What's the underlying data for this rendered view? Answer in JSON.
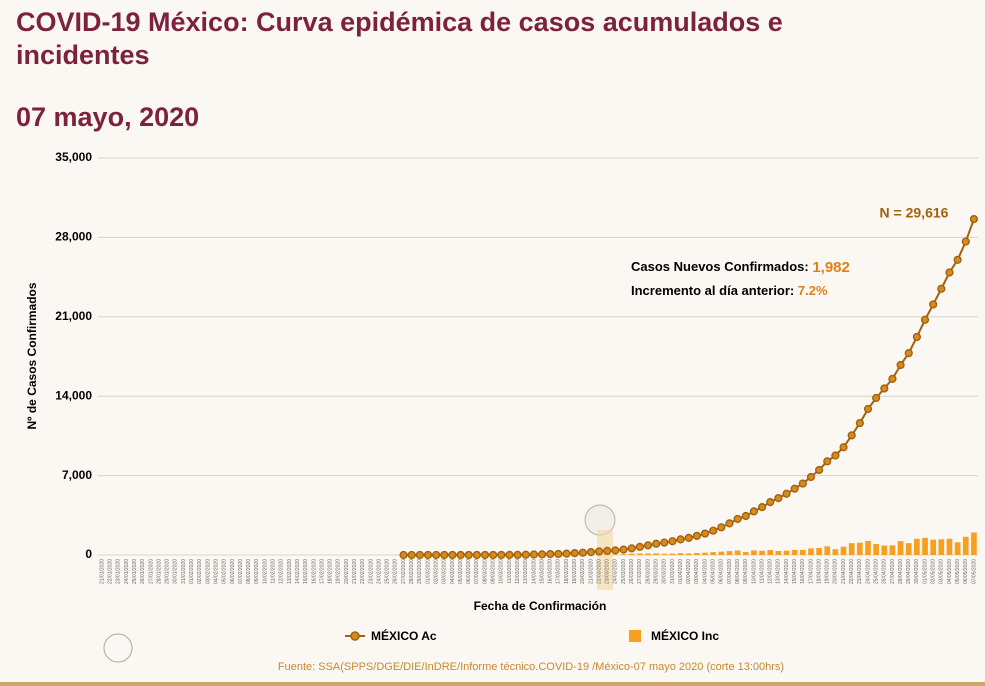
{
  "chart_data": {
    "type": "combo",
    "title": "COVID-19 México: Curva epidémica de casos acumulados e incidentes",
    "subtitle": "07 mayo, 2020",
    "y_label": "Nº de Casos Confirmados",
    "x_label": "Fecha de Confirmación",
    "source": "Fuente: SSA(SPPS/DGE/DIE/InDRE/Informe técnico.COVID-19 /México-07 mayo 2020 (corte 13:00hrs)",
    "annotations": [
      "N = 29,616",
      "Casos Nuevos Confirmados: ",
      "1,982",
      "Incremento al día anterior: ",
      "7.2%"
    ],
    "ylim": [
      0,
      35000
    ],
    "yticks": [
      0,
      {
        "value": 7000,
        "label": "7,000"
      },
      {
        "value": 14000,
        "label": "14,000"
      },
      {
        "value": 21000,
        "label": "21,000"
      },
      {
        "value": 28000,
        "label": "28,000"
      },
      {
        "value": 35000,
        "label": "35,000"
      }
    ],
    "grid": true,
    "categories": [
      "21/01/2020",
      "22/01/2020",
      "23/01/2020",
      "24/01/2020",
      "25/01/2020",
      "26/01/2020",
      "27/01/2020",
      "28/01/2020",
      "29/01/2020",
      "30/01/2020",
      "31/01/2020",
      "01/02/2020",
      "02/02/2020",
      "03/02/2020",
      "04/02/2020",
      "05/02/2020",
      "06/02/2020",
      "07/02/2020",
      "08/02/2020",
      "09/02/2020",
      "10/02/2020",
      "11/02/2020",
      "12/02/2020",
      "13/02/2020",
      "14/02/2020",
      "15/02/2020",
      "16/02/2020",
      "17/02/2020",
      "18/02/2020",
      "19/02/2020",
      "20/02/2020",
      "21/02/2020",
      "22/02/2020",
      "23/02/2020",
      "24/02/2020",
      "25/02/2020",
      "26/02/2020",
      "27/02/2020",
      "28/02/2020",
      "29/02/2020",
      "01/03/2020",
      "02/03/2020",
      "03/03/2020",
      "04/03/2020",
      "05/03/2020",
      "06/03/2020",
      "07/03/2020",
      "08/03/2020",
      "09/03/2020",
      "10/03/2020",
      "11/03/2020",
      "12/03/2020",
      "13/03/2020",
      "14/03/2020",
      "15/03/2020",
      "16/03/2020",
      "17/03/2020",
      "18/03/2020",
      "19/03/2020",
      "20/03/2020",
      "21/03/2020",
      "22/03/2020",
      "23/03/2020",
      "24/03/2020",
      "25/03/2020",
      "26/03/2020",
      "27/03/2020",
      "28/03/2020",
      "29/03/2020",
      "30/03/2020",
      "31/03/2020",
      "01/04/2020",
      "02/04/2020",
      "03/04/2020",
      "04/04/2020",
      "05/04/2020",
      "06/04/2020",
      "07/04/2020",
      "08/04/2020",
      "09/04/2020",
      "10/04/2020",
      "11/04/2020",
      "12/04/2020",
      "13/04/2020",
      "14/04/2020",
      "15/04/2020",
      "16/04/2020",
      "17/04/2020",
      "18/04/2020",
      "19/04/2020",
      "20/04/2020",
      "21/04/2020",
      "22/04/2020",
      "23/04/2020",
      "24/04/2020",
      "25/04/2020",
      "26/04/2020",
      "27/04/2020",
      "28/04/2020",
      "29/04/2020",
      "30/04/2020",
      "01/05/2020",
      "02/05/2020",
      "03/05/2020",
      "04/05/2020",
      "05/05/2020",
      "06/05/2020",
      "07/05/2020"
    ],
    "series": [
      {
        "name": "MÉXICO Ac",
        "type": "line",
        "color": "#a0620e",
        "marker_color": "#d98a1e",
        "values": [
          null,
          null,
          null,
          null,
          null,
          null,
          null,
          null,
          null,
          null,
          null,
          null,
          null,
          null,
          null,
          null,
          null,
          null,
          null,
          null,
          null,
          null,
          null,
          null,
          null,
          null,
          null,
          null,
          null,
          null,
          null,
          null,
          null,
          null,
          null,
          null,
          null,
          0,
          1,
          4,
          5,
          5,
          5,
          5,
          5,
          6,
          7,
          7,
          7,
          7,
          8,
          12,
          26,
          41,
          53,
          82,
          93,
          118,
          164,
          203,
          251,
          316,
          367,
          405,
          475,
          585,
          717,
          848,
          993,
          1094,
          1215,
          1378,
          1510,
          1688,
          1890,
          2143,
          2439,
          2785,
          3181,
          3441,
          3844,
          4219,
          4661,
          5014,
          5399,
          5847,
          6297,
          6875,
          7497,
          8261,
          8772,
          9501,
          10544,
          11633,
          12872,
          13842,
          14677,
          15529,
          16752,
          17799,
          19224,
          20739,
          22088,
          23471,
          24905,
          26025,
          27634,
          29616
        ]
      },
      {
        "name": "MÉXICO Inc",
        "type": "bar",
        "color": "#f7a020",
        "values": [
          null,
          null,
          null,
          null,
          null,
          null,
          null,
          null,
          null,
          null,
          null,
          null,
          null,
          null,
          null,
          null,
          null,
          null,
          null,
          null,
          null,
          null,
          null,
          null,
          null,
          null,
          null,
          null,
          null,
          null,
          null,
          null,
          null,
          null,
          null,
          null,
          null,
          0,
          1,
          3,
          1,
          0,
          0,
          0,
          0,
          1,
          1,
          0,
          0,
          0,
          1,
          4,
          14,
          15,
          12,
          29,
          11,
          25,
          46,
          39,
          48,
          65,
          51,
          38,
          70,
          110,
          132,
          131,
          145,
          101,
          121,
          163,
          132,
          178,
          202,
          253,
          296,
          346,
          396,
          260,
          403,
          375,
          442,
          353,
          385,
          448,
          450,
          578,
          622,
          764,
          511,
          729,
          1043,
          1089,
          1239,
          970,
          835,
          852,
          1223,
          1047,
          1425,
          1515,
          1349,
          1383,
          1434,
          1120,
          1609,
          1982
        ]
      }
    ]
  }
}
